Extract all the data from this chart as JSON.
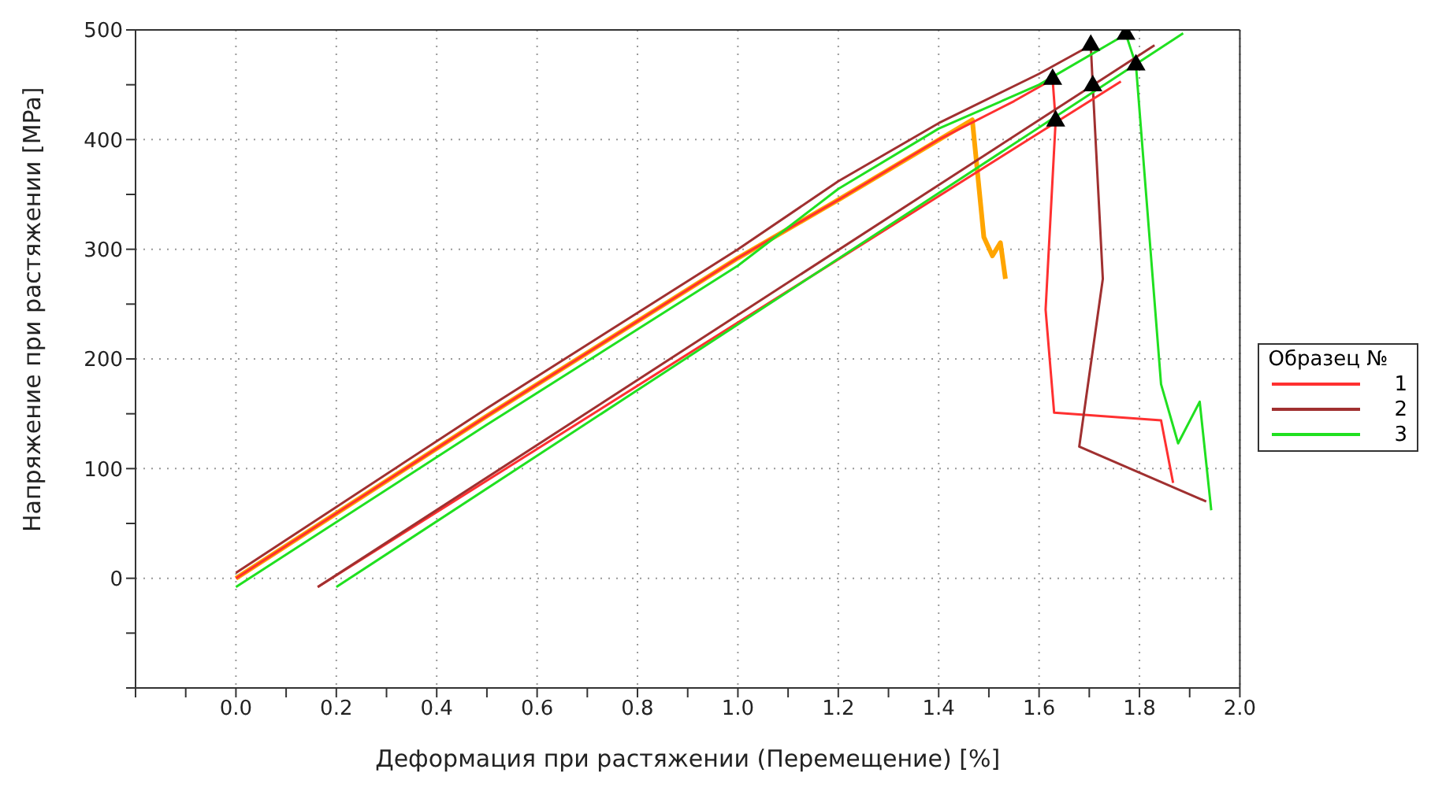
{
  "chart_data": {
    "type": "line",
    "xlabel": "Деформация при растяжении (Перемещение) [%]",
    "ylabel": "Напряжение при растяжении [MPa]",
    "legend_title": "Образец №",
    "legend": "right",
    "grid": true,
    "marker": "none",
    "line_style": "solid",
    "xlim": [
      -0.2,
      2.0
    ],
    "xticks": [
      {
        "value": -0.2,
        "label": null
      },
      {
        "value": -0.1,
        "label": null
      },
      {
        "value": 0,
        "label": "0.0"
      },
      {
        "value": 0.1,
        "label": null
      },
      {
        "value": 0.2,
        "label": "0.2"
      },
      {
        "value": 0.3,
        "label": null
      },
      {
        "value": 0.4,
        "label": "0.4"
      },
      {
        "value": 0.5,
        "label": null
      },
      {
        "value": 0.6,
        "label": "0.6"
      },
      {
        "value": 0.7,
        "label": null
      },
      {
        "value": 0.8,
        "label": "0.8"
      },
      {
        "value": 0.9,
        "label": null
      },
      {
        "value": 1,
        "label": "1.0"
      },
      {
        "value": 1.1,
        "label": null
      },
      {
        "value": 1.2,
        "label": "1.2"
      },
      {
        "value": 1.3,
        "label": null
      },
      {
        "value": 1.4,
        "label": "1.4"
      },
      {
        "value": 1.5,
        "label": null
      },
      {
        "value": 1.6,
        "label": "1.6"
      },
      {
        "value": 1.7,
        "label": null
      },
      {
        "value": 1.8,
        "label": "1.8"
      },
      {
        "value": 1.9,
        "label": null
      },
      {
        "value": 2,
        "label": "2.0"
      }
    ],
    "ylim": [
      -100,
      500
    ],
    "yticks": [
      {
        "value": -100,
        "label": null
      },
      {
        "value": -50,
        "label": null
      },
      0,
      {
        "value": 50,
        "label": null
      },
      100,
      {
        "value": 150,
        "label": null
      },
      200,
      {
        "value": 250,
        "label": null
      },
      300,
      {
        "value": 350,
        "label": null
      },
      400,
      {
        "value": 450,
        "label": null
      },
      500
    ],
    "series": [
      {
        "color": "#ffa500",
        "x": [
          0,
          0.5,
          1.0,
          1.2,
          1.467,
          1.49,
          1.507,
          1.523,
          1.533
        ],
        "values": [
          0,
          148,
          292,
          345,
          418,
          311,
          294,
          306,
          273
        ]
      },
      {
        "name": "1",
        "color": "#ff3030",
        "x": [
          0,
          0.5,
          1.0,
          1.2,
          1.4,
          1.55,
          1.627,
          1.633,
          1.613,
          1.63,
          1.843,
          1.867
        ],
        "values": [
          0,
          148,
          292,
          345,
          400,
          435,
          455,
          417,
          245,
          151,
          144,
          87
        ]
      },
      {
        "name": "2",
        "color": "#a03030",
        "x": [
          0,
          0.5,
          1.0,
          1.2,
          1.4,
          1.6,
          1.703,
          1.707,
          1.727,
          1.68,
          1.933
        ],
        "values": [
          5,
          155,
          300,
          362,
          415,
          460,
          486,
          449,
          273,
          120,
          70
        ]
      },
      {
        "name": "3",
        "color": "#20e020",
        "x": [
          0,
          0.5,
          1.0,
          1.2,
          1.4,
          1.6,
          1.773,
          1.793,
          1.843,
          1.877,
          1.92,
          1.943
        ],
        "values": [
          -8,
          140,
          285,
          355,
          410,
          450,
          496,
          468,
          177,
          123,
          161,
          62
        ]
      },
      {
        "color": "#ff3030",
        "x": [
          0.163,
          1.763
        ],
        "values": [
          -8,
          453
        ]
      },
      {
        "color": "#a03030",
        "x": [
          0.163,
          1.83
        ],
        "values": [
          -8,
          486
        ]
      },
      {
        "color": "#20e020",
        "x": [
          0.2,
          1.887
        ],
        "values": [
          -8,
          497
        ]
      },
      {
        "type": "scatter",
        "color": "#000000",
        "marker": "triangle",
        "x": [
          1.627,
          1.633,
          1.703,
          1.707,
          1.773,
          1.793
        ],
        "values": [
          455,
          417,
          486,
          449,
          496,
          468
        ]
      }
    ]
  }
}
